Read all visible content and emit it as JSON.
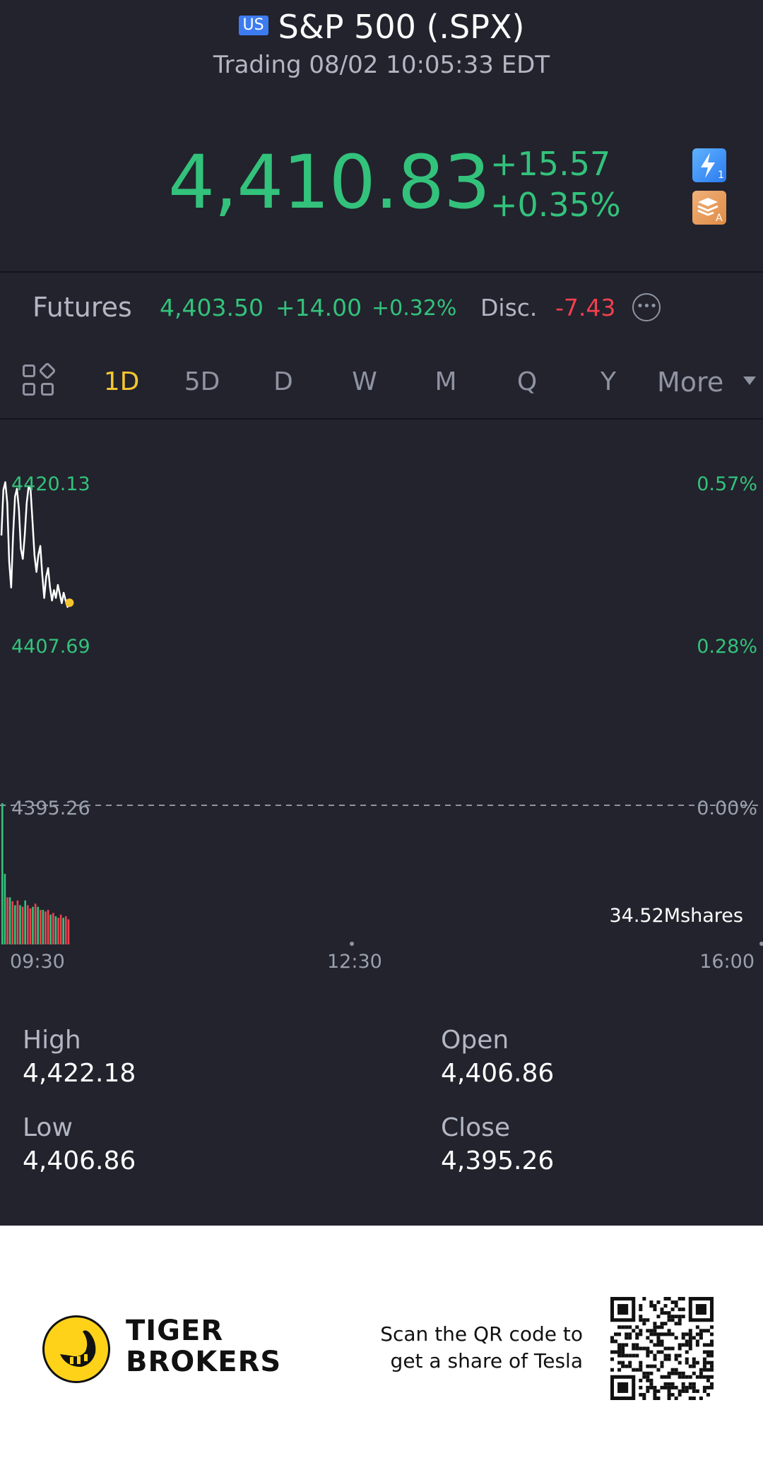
{
  "header": {
    "flag": "US",
    "title": "S&P 500 (.SPX)",
    "subtitle": "Trading 08/02 10:05:33 EDT"
  },
  "quote": {
    "price": "4,410.83",
    "change": "+15.57",
    "change_pct": "+0.35%",
    "color_up": "#33c27b",
    "color_down": "#f0404e",
    "icons": [
      "lightning-level-1-icon",
      "stack-a-icon"
    ]
  },
  "futures": {
    "label": "Futures",
    "price": "4,403.50",
    "change": "+14.00",
    "change_pct": "+0.32%",
    "disc_label": "Disc.",
    "disc_value": "-7.43"
  },
  "tabs": {
    "items": [
      "1D",
      "5D",
      "D",
      "W",
      "M",
      "Q",
      "Y"
    ],
    "active": "1D",
    "more": "More"
  },
  "chart": {
    "left_ticks": [
      "4420.13",
      "4407.69",
      "4395.26"
    ],
    "right_ticks": [
      "0.57%",
      "0.28%",
      "0.00%"
    ],
    "volume_label": "34.52Mshares",
    "time_ticks": [
      "09:30",
      "12:30",
      "16:00"
    ]
  },
  "chart_data": {
    "type": "line",
    "title": "",
    "xlabel": "",
    "ylabel": "",
    "x": [
      "09:30",
      "09:31",
      "09:32",
      "09:33",
      "09:34",
      "09:35",
      "09:36",
      "09:37",
      "09:38",
      "09:39",
      "09:40",
      "09:41",
      "09:42",
      "09:43",
      "09:44",
      "09:45",
      "09:46",
      "09:47",
      "09:48",
      "09:49",
      "09:50",
      "09:51",
      "09:52",
      "09:53",
      "09:54",
      "09:55",
      "09:56",
      "09:57",
      "09:58",
      "09:59",
      "10:00",
      "10:01",
      "10:02",
      "10:03",
      "10:04",
      "10:05"
    ],
    "series": [
      {
        "values": [
          4416.0,
          4419.5,
          4420.1,
          4418.5,
          4414.0,
          4412.0,
          4416.0,
          4419.0,
          4419.6,
          4418.0,
          4415.0,
          4414.2,
          4416.0,
          4418.5,
          4419.8,
          4419.5,
          4417.0,
          4414.5,
          4413.2,
          4414.5,
          4415.2,
          4413.0,
          4411.2,
          4412.8,
          4413.5,
          4412.0,
          4411.0,
          4411.8,
          4411.2,
          4412.2,
          4411.5,
          4410.8,
          4411.6,
          4411.0,
          4410.5,
          4410.83
        ]
      }
    ],
    "volume": {
      "values": [
        18,
        9,
        6,
        6,
        5.5,
        5,
        5.6,
        5,
        4.8,
        5.6,
        5,
        4.6,
        4.8,
        5.2,
        4.8,
        4.4,
        4.4,
        4.2,
        4.4,
        3.8,
        4.0,
        3.6,
        3.4,
        3.8,
        3.4,
        3.6,
        3.2
      ],
      "directions": [
        "up",
        "up",
        "down",
        "up",
        "down",
        "up",
        "down",
        "up",
        "down",
        "up",
        "down",
        "down",
        "up",
        "down",
        "up",
        "down",
        "up",
        "down",
        "down",
        "up",
        "down",
        "up",
        "down",
        "down",
        "up",
        "down",
        "down"
      ]
    },
    "ylim": [
      4395.26,
      4426.0
    ],
    "prev_close": 4395.26,
    "x_session": [
      "09:30",
      "16:00"
    ]
  },
  "stats": {
    "high_label": "High",
    "high_value": "4,422.18",
    "open_label": "Open",
    "open_value": "4,406.86",
    "low_label": "Low",
    "low_value": "4,406.86",
    "close_label": "Close",
    "close_value": "4,395.26"
  },
  "footer": {
    "brand_line1": "TIGER",
    "brand_line2": "BROKERS",
    "scan_line1": "Scan the QR code to",
    "scan_line2": "get a share of Tesla"
  }
}
